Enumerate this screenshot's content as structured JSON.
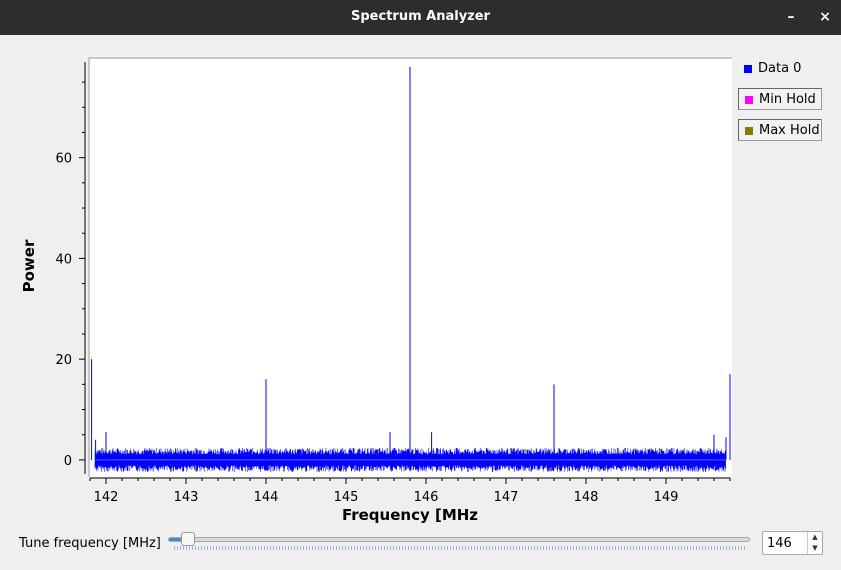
{
  "window": {
    "title": "Spectrum Analyzer",
    "minimize": "–",
    "close": "×"
  },
  "legend": [
    {
      "label": "Data 0",
      "color": "#0000ff"
    },
    {
      "label": "Min Hold",
      "color": "#ff00ff"
    },
    {
      "label": "Max Hold",
      "color": "#808000"
    }
  ],
  "chart_data": {
    "type": "line",
    "xlabel": "Frequency [MHz",
    "ylabel": "Power",
    "xlim": [
      141.8,
      149.8
    ],
    "ylim": [
      -3,
      78
    ],
    "x_ticks": [
      142,
      143,
      144,
      145,
      146,
      147,
      148,
      149
    ],
    "y_ticks": [
      0,
      20,
      40,
      60
    ],
    "noise_floor": {
      "min": -2,
      "max": 2
    },
    "series": [
      {
        "name": "Data 0",
        "peaks": [
          {
            "x": 141.82,
            "y": 20
          },
          {
            "x": 141.87,
            "y": 4
          },
          {
            "x": 142.0,
            "y": 5.5
          },
          {
            "x": 144.0,
            "y": 16
          },
          {
            "x": 145.55,
            "y": 5.5
          },
          {
            "x": 145.8,
            "y": 78
          },
          {
            "x": 146.07,
            "y": 5.5
          },
          {
            "x": 147.6,
            "y": 15
          },
          {
            "x": 149.6,
            "y": 5
          },
          {
            "x": 149.75,
            "y": 4.5
          },
          {
            "x": 149.8,
            "y": 17
          }
        ]
      }
    ]
  },
  "tune": {
    "label": "Tune frequency [MHz]",
    "value": "146",
    "fraction": 0.03
  }
}
